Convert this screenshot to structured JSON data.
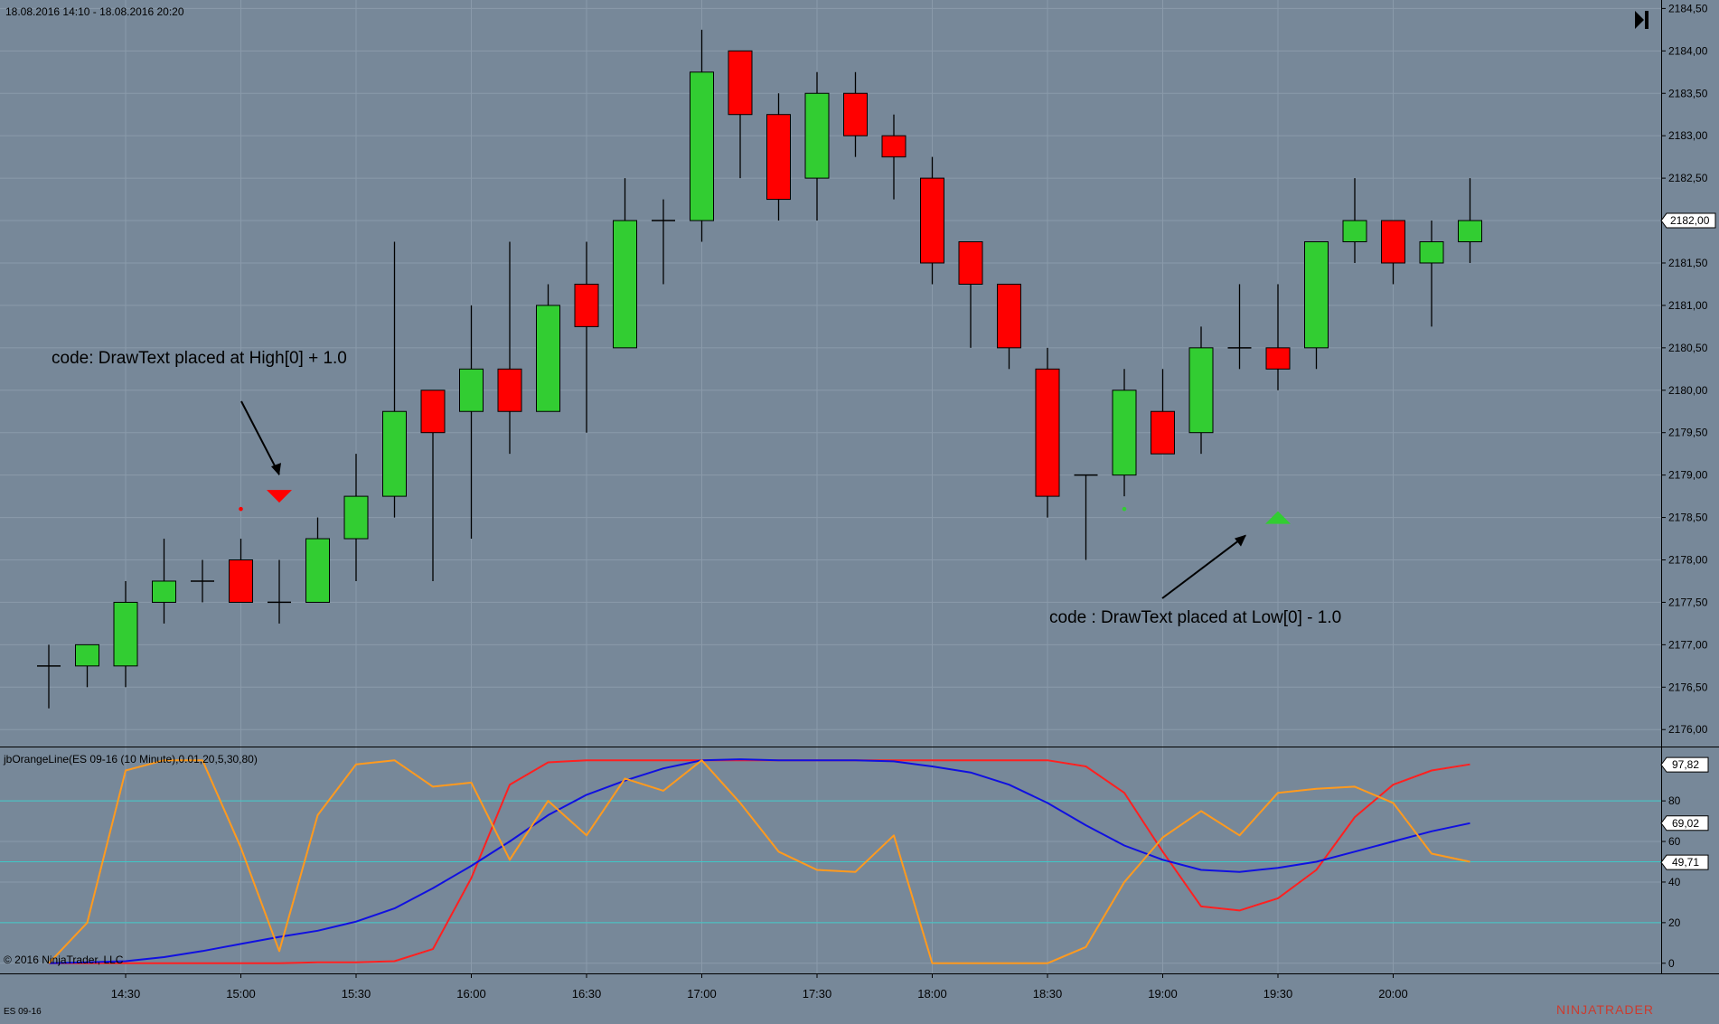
{
  "header": {
    "date_range": "18.08.2016 14:10 - 18.08.2016 20:20"
  },
  "footer": {
    "copyright": "© 2016 NinjaTrader, LLC",
    "instrument": "ES 09-16",
    "logo_text": "NINJATRADER"
  },
  "colors": {
    "background": "#778899",
    "grid": "#8a9aaa",
    "up_candle": "#32CD32",
    "down_candle": "#FF0000",
    "wick": "#000000",
    "indicator_red": "#FF2020",
    "indicator_blue": "#1010E0",
    "indicator_orange": "#FF9A1E",
    "cyan_levels": "#3FC8C8"
  },
  "chart_data": [
    {
      "type": "candlestick",
      "title": "",
      "x_time_labels": [
        "14:30",
        "15:00",
        "15:30",
        "16:00",
        "16:30",
        "17:00",
        "17:30",
        "18:00",
        "18:30",
        "19:00",
        "19:30",
        "20:00"
      ],
      "y_tick_labels": [
        "2176,00",
        "2176,50",
        "2177,00",
        "2177,50",
        "2178,00",
        "2178,50",
        "2179,00",
        "2179,50",
        "2180,00",
        "2180,50",
        "2181,00",
        "2181,50",
        "2182,00",
        "2182,50",
        "2183,00",
        "2183,50",
        "2184,00",
        "2184,50"
      ],
      "ylim": [
        2175.8,
        2184.6
      ],
      "current_price_label": "2182,00",
      "candles": [
        {
          "time": "14:10",
          "open": 2176.75,
          "high": 2177.0,
          "low": 2176.25,
          "close": 2176.75
        },
        {
          "time": "14:20",
          "open": 2176.75,
          "high": 2177.0,
          "low": 2176.5,
          "close": 2177.0
        },
        {
          "time": "14:30",
          "open": 2176.75,
          "high": 2177.75,
          "low": 2176.5,
          "close": 2177.5
        },
        {
          "time": "14:40",
          "open": 2177.5,
          "high": 2178.25,
          "low": 2177.25,
          "close": 2177.75
        },
        {
          "time": "14:50",
          "open": 2177.75,
          "high": 2178.0,
          "low": 2177.5,
          "close": 2177.75
        },
        {
          "time": "15:00",
          "open": 2178.0,
          "high": 2178.25,
          "low": 2177.5,
          "close": 2177.5
        },
        {
          "time": "15:10",
          "open": 2177.5,
          "high": 2178.0,
          "low": 2177.25,
          "close": 2177.5
        },
        {
          "time": "15:20",
          "open": 2177.5,
          "high": 2178.5,
          "low": 2177.5,
          "close": 2178.25
        },
        {
          "time": "15:30",
          "open": 2178.25,
          "high": 2179.25,
          "low": 2177.75,
          "close": 2178.75
        },
        {
          "time": "15:40",
          "open": 2178.75,
          "high": 2181.75,
          "low": 2178.5,
          "close": 2179.75
        },
        {
          "time": "15:50",
          "open": 2180.0,
          "high": 2180.0,
          "low": 2177.75,
          "close": 2179.5
        },
        {
          "time": "16:00",
          "open": 2179.75,
          "high": 2181.0,
          "low": 2178.25,
          "close": 2180.25
        },
        {
          "time": "16:10",
          "open": 2180.25,
          "high": 2181.75,
          "low": 2179.25,
          "close": 2179.75
        },
        {
          "time": "16:20",
          "open": 2179.75,
          "high": 2181.25,
          "low": 2179.75,
          "close": 2181.0
        },
        {
          "time": "16:30",
          "open": 2181.25,
          "high": 2181.75,
          "low": 2179.5,
          "close": 2180.75
        },
        {
          "time": "16:40",
          "open": 2180.5,
          "high": 2182.5,
          "low": 2180.5,
          "close": 2182.0
        },
        {
          "time": "16:50",
          "open": 2182.0,
          "high": 2182.25,
          "low": 2181.25,
          "close": 2182.0
        },
        {
          "time": "17:00",
          "open": 2182.0,
          "high": 2184.25,
          "low": 2181.75,
          "close": 2183.75
        },
        {
          "time": "17:10",
          "open": 2184.0,
          "high": 2184.0,
          "low": 2182.5,
          "close": 2183.25
        },
        {
          "time": "17:20",
          "open": 2183.25,
          "high": 2183.5,
          "low": 2182.0,
          "close": 2182.25
        },
        {
          "time": "17:30",
          "open": 2182.5,
          "high": 2183.75,
          "low": 2182.0,
          "close": 2183.5
        },
        {
          "time": "17:40",
          "open": 2183.5,
          "high": 2183.75,
          "low": 2182.75,
          "close": 2183.0
        },
        {
          "time": "17:50",
          "open": 2183.0,
          "high": 2183.25,
          "low": 2182.25,
          "close": 2182.75
        },
        {
          "time": "18:00",
          "open": 2182.5,
          "high": 2182.75,
          "low": 2181.25,
          "close": 2181.5
        },
        {
          "time": "18:10",
          "open": 2181.75,
          "high": 2181.75,
          "low": 2180.5,
          "close": 2181.25
        },
        {
          "time": "18:20",
          "open": 2181.25,
          "high": 2181.25,
          "low": 2180.25,
          "close": 2180.5
        },
        {
          "time": "18:30",
          "open": 2180.25,
          "high": 2180.5,
          "low": 2178.5,
          "close": 2178.75
        },
        {
          "time": "18:40",
          "open": 2179.0,
          "high": 2179.0,
          "low": 2178.0,
          "close": 2179.0
        },
        {
          "time": "18:50",
          "open": 2179.0,
          "high": 2180.25,
          "low": 2178.75,
          "close": 2180.0
        },
        {
          "time": "19:00",
          "open": 2179.75,
          "high": 2180.25,
          "low": 2179.25,
          "close": 2179.25
        },
        {
          "time": "19:10",
          "open": 2179.5,
          "high": 2180.75,
          "low": 2179.25,
          "close": 2180.5
        },
        {
          "time": "19:20",
          "open": 2180.5,
          "high": 2181.25,
          "low": 2180.25,
          "close": 2180.5
        },
        {
          "time": "19:30",
          "open": 2180.5,
          "high": 2181.25,
          "low": 2180.0,
          "close": 2180.25
        },
        {
          "time": "19:40",
          "open": 2180.5,
          "high": 2181.75,
          "low": 2180.25,
          "close": 2181.75
        },
        {
          "time": "19:50",
          "open": 2181.75,
          "high": 2182.5,
          "low": 2181.5,
          "close": 2182.0
        },
        {
          "time": "20:00",
          "open": 2182.0,
          "high": 2182.0,
          "low": 2181.25,
          "close": 2181.5
        },
        {
          "time": "20:10",
          "open": 2181.5,
          "high": 2182.0,
          "low": 2180.75,
          "close": 2181.75
        },
        {
          "time": "20:20",
          "open": 2181.75,
          "high": 2182.5,
          "low": 2181.5,
          "close": 2182.0
        }
      ],
      "markers": [
        {
          "shape": "triangle-down",
          "time": "15:10",
          "price": 2178.75,
          "color": "#FF0000"
        },
        {
          "shape": "triangle-up",
          "time": "19:30",
          "price": 2178.5,
          "color": "#32CD32"
        },
        {
          "shape": "dot",
          "time": "15:00",
          "price": 2178.6,
          "color": "#FF0000"
        },
        {
          "shape": "dot",
          "time": "18:50",
          "price": 2178.6,
          "color": "#32CD32"
        }
      ],
      "annotations": [
        {
          "text": "code: DrawText placed at High[0] + 1.0",
          "arrow_to_time": "15:10",
          "arrow_to_price": 2178.75
        },
        {
          "text": "code : DrawText placed at Low[0] - 1.0",
          "arrow_to_time": "19:30",
          "arrow_to_price": 2178.5
        }
      ]
    },
    {
      "type": "line",
      "title": "jbOrangeLine(ES 09-16 (10 Minute),0.01,20,5,30,80)",
      "ylim": [
        -5,
        105
      ],
      "y_tick_labels": [
        "0",
        "20",
        "40",
        "60",
        "80"
      ],
      "x_time_labels": [
        "14:30",
        "15:00",
        "15:30",
        "16:00",
        "16:30",
        "17:00",
        "17:30",
        "18:00",
        "18:30",
        "19:00",
        "19:30",
        "20:00"
      ],
      "reference_levels": [
        20,
        50,
        80
      ],
      "value_labels": [
        "97,82",
        "69,02",
        "49,71"
      ],
      "x": [
        "14:10",
        "14:20",
        "14:30",
        "14:40",
        "14:50",
        "15:00",
        "15:10",
        "15:20",
        "15:30",
        "15:40",
        "15:50",
        "16:00",
        "16:10",
        "16:20",
        "16:30",
        "16:40",
        "16:50",
        "17:00",
        "17:10",
        "17:20",
        "17:30",
        "17:40",
        "17:50",
        "18:00",
        "18:10",
        "18:20",
        "18:30",
        "18:40",
        "18:50",
        "19:00",
        "19:10",
        "19:20",
        "19:30",
        "19:40",
        "19:50",
        "20:00",
        "20:10",
        "20:20"
      ],
      "series": [
        {
          "color": "#FF2020",
          "values": [
            0,
            0,
            0,
            0,
            0,
            0,
            0,
            0.5,
            0.5,
            1,
            7,
            42,
            88,
            99,
            100,
            100,
            100,
            100,
            100,
            100,
            100,
            100,
            100,
            100,
            100,
            100,
            100,
            97,
            84,
            55,
            28,
            26,
            32,
            46,
            72,
            88,
            95,
            98
          ]
        },
        {
          "color": "#1010E0",
          "values": [
            0,
            0.5,
            1,
            3,
            6,
            9.5,
            13,
            16,
            20.5,
            27,
            37,
            48,
            60,
            73,
            83,
            90,
            96,
            100,
            100.5,
            100,
            100,
            100,
            99.5,
            97,
            94,
            88,
            79,
            68,
            58,
            51,
            46,
            45,
            47,
            50,
            55,
            60,
            65,
            69
          ]
        },
        {
          "color": "#FF9A1E",
          "values": [
            0,
            20,
            95,
            100,
            100,
            57,
            6,
            73,
            98,
            100,
            87,
            89,
            51,
            80,
            63,
            91,
            85,
            100,
            79,
            55,
            46,
            45,
            63,
            0,
            0,
            0,
            0,
            8,
            40,
            62,
            75,
            63,
            84,
            86,
            87,
            79,
            54,
            50
          ]
        }
      ]
    }
  ]
}
